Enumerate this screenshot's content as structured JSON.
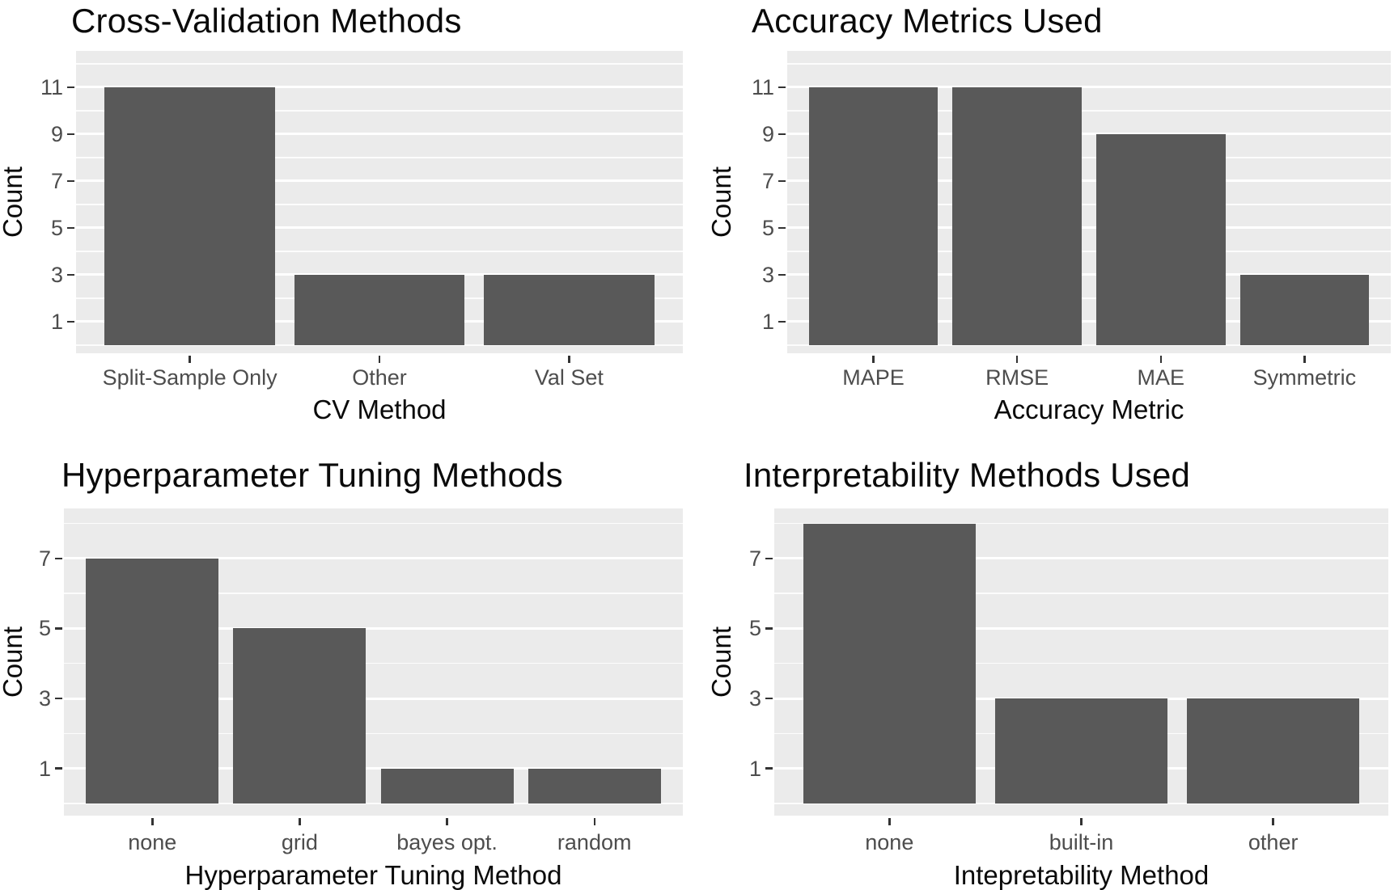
{
  "page": {
    "background_color": "#ffffff",
    "description_colors": {
      "bar_fill": "#595959",
      "panel_background": "#ebebeb",
      "major_gridline": "#ffffff",
      "minor_gridline": "#ffffff",
      "tick_label_color": "#4d4d4d",
      "tick_mark_color": "#333333",
      "title_color": "#0a0a0a"
    }
  },
  "chart_data": [
    {
      "type": "bar",
      "title": "Cross-Validation Methods",
      "xlabel": "CV Method",
      "ylabel": "Count",
      "categories": [
        "Split-Sample Only",
        "Other",
        "Val Set"
      ],
      "values": [
        11,
        3,
        3
      ],
      "yticks": [
        1,
        3,
        5,
        7,
        9,
        11
      ],
      "yminor": [
        0,
        2,
        4,
        6,
        8,
        10,
        12
      ],
      "ylim": [
        -0.35,
        12.55
      ],
      "grid": true,
      "legend": "none",
      "bar_width_fraction": 0.9
    },
    {
      "type": "bar",
      "title": "Accuracy Metrics Used",
      "xlabel": "Accuracy Metric",
      "ylabel": "Count",
      "categories": [
        "MAPE",
        "RMSE",
        "MAE",
        "Symmetric"
      ],
      "values": [
        11,
        11,
        9,
        3
      ],
      "yticks": [
        1,
        3,
        5,
        7,
        9,
        11
      ],
      "yminor": [
        0,
        2,
        4,
        6,
        8,
        10,
        12
      ],
      "ylim": [
        -0.35,
        12.55
      ],
      "grid": true,
      "legend": "none",
      "bar_width_fraction": 0.9
    },
    {
      "type": "bar",
      "title": "Hyperparameter Tuning Methods",
      "xlabel": "Hyperparameter Tuning Method",
      "ylabel": "Count",
      "categories": [
        "none",
        "grid",
        "bayes opt.",
        "random"
      ],
      "values": [
        7,
        5,
        1,
        1
      ],
      "yticks": [
        1,
        3,
        5,
        7
      ],
      "yminor": [
        0,
        2,
        4,
        6,
        8
      ],
      "ylim": [
        -0.35,
        8.43
      ],
      "grid": true,
      "legend": "none",
      "bar_width_fraction": 0.9
    },
    {
      "type": "bar",
      "title": "Interpretability Methods Used",
      "xlabel": "Intepretability Method",
      "ylabel": "Count",
      "categories": [
        "none",
        "built-in",
        "other"
      ],
      "values": [
        8,
        3,
        3
      ],
      "yticks": [
        1,
        3,
        5,
        7
      ],
      "yminor": [
        0,
        2,
        4,
        6,
        8
      ],
      "ylim": [
        -0.35,
        8.43
      ],
      "grid": true,
      "legend": "none",
      "bar_width_fraction": 0.9
    }
  ]
}
